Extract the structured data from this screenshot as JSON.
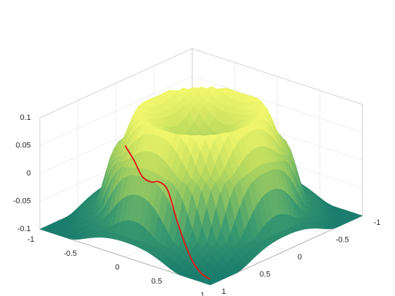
{
  "chart_data": {
    "type": "surface",
    "title": "",
    "xlabel": "",
    "ylabel": "",
    "zlabel": "",
    "xlim": [
      -1,
      1
    ],
    "ylim": [
      -1,
      1
    ],
    "zlim": [
      -0.1,
      0.1
    ],
    "x_ticks": [
      "-1",
      "-0.5",
      "0",
      "0.5",
      "1"
    ],
    "y_ticks": [
      "-1",
      "-0.5",
      "0",
      "0.5",
      "1"
    ],
    "z_ticks": [
      "-0.1",
      "-0.05",
      "0",
      "0.05",
      "0.1"
    ],
    "grid": true,
    "box": "3d-axes",
    "colormap": [
      "#1a7d6d",
      "#3a9a6f",
      "#7cbc64",
      "#c2de5e",
      "#f4f86c"
    ],
    "surface_samples": [
      {
        "r": 0.0,
        "z": 0.02
      },
      {
        "r": 0.2,
        "z": 0.04
      },
      {
        "r": 0.4,
        "z": 0.08
      },
      {
        "r": 0.55,
        "z": 0.1
      },
      {
        "r": 0.75,
        "z": 0.03
      },
      {
        "r": 0.95,
        "z": -0.07
      },
      {
        "r": 1.2,
        "z": -0.1
      }
    ],
    "series": [
      {
        "type": "line3d",
        "color": "#e31a1c",
        "x": [
          0.0,
          0.1,
          0.2,
          0.3,
          0.4,
          0.5,
          0.6,
          0.7,
          0.8,
          0.9,
          1.0
        ],
        "y": [
          1.0,
          1.0,
          1.0,
          1.0,
          1.0,
          1.0,
          1.0,
          1.0,
          1.0,
          1.0,
          1.0
        ],
        "z": [
          0.1,
          0.08,
          0.055,
          0.05,
          0.055,
          0.045,
          0.0,
          -0.04,
          -0.07,
          -0.085,
          -0.09
        ]
      }
    ]
  }
}
